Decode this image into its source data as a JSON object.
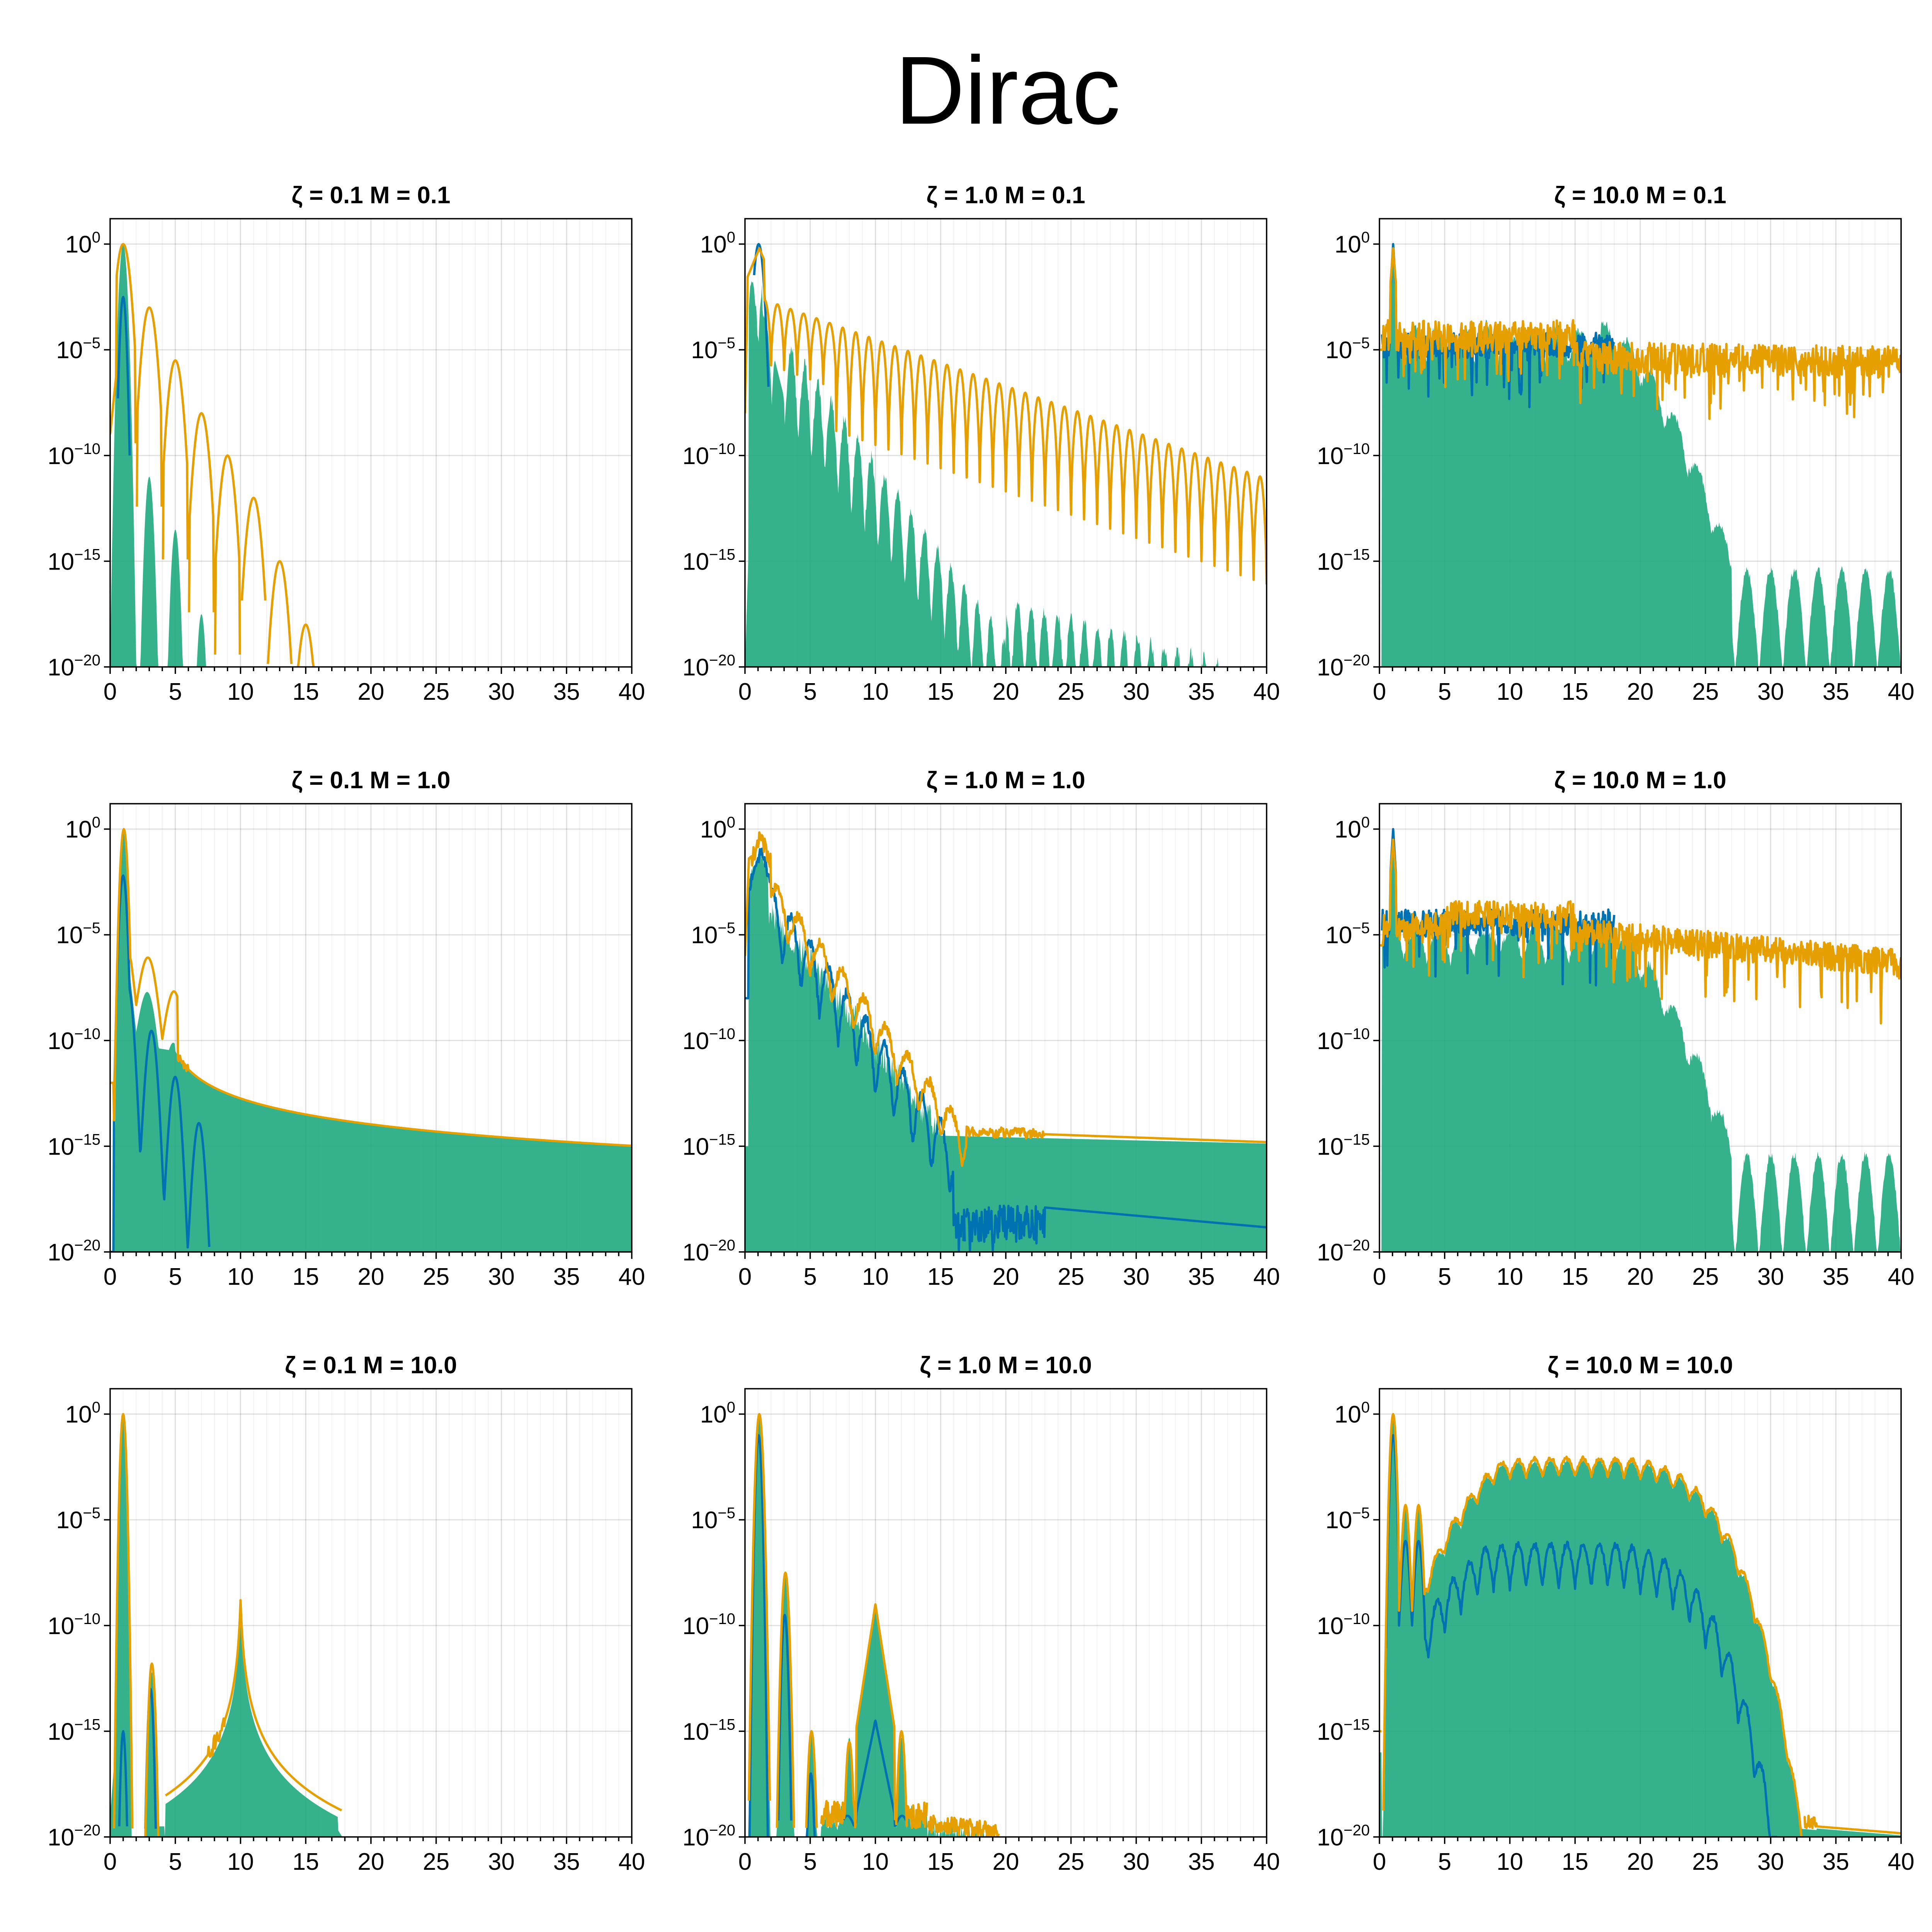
{
  "title": "Dirac",
  "colors": {
    "area": "#1FAA80",
    "blue": "#0072B2",
    "orange": "#E69F00"
  },
  "chart_data": [
    {
      "type": "area",
      "title": "ζ = 0.1  M = 0.1",
      "xlim": [
        0,
        40
      ],
      "ylim": [
        1e-20,
        1
      ],
      "yscale": "log",
      "grid": true,
      "x_ticks": [
        "0",
        "5",
        "10",
        "15",
        "20",
        "25",
        "30",
        "35",
        "40"
      ],
      "y_ticks": [
        "10^0",
        "10^-5",
        "10^-10",
        "10^-15",
        "10^-20"
      ],
      "peaks": {
        "area": [
          [
            1,
            0
          ],
          [
            3,
            -11
          ],
          [
            5,
            -13.5
          ],
          [
            7,
            -17.5
          ]
        ],
        "orange": [
          [
            1,
            0
          ],
          [
            3,
            -3
          ],
          [
            5,
            -5.5
          ],
          [
            7,
            -8
          ],
          [
            9,
            -10
          ],
          [
            11,
            -12
          ],
          [
            13,
            -15
          ],
          [
            15,
            -18
          ]
        ],
        "blue": [
          [
            1,
            -2.5
          ]
        ]
      }
    },
    {
      "type": "area",
      "title": "ζ = 1.0  M = 0.1",
      "xlim": [
        0,
        40
      ],
      "ylim": [
        1e-20,
        1
      ],
      "yscale": "log",
      "grid": true,
      "x_ticks": [
        "0",
        "5",
        "10",
        "15",
        "20",
        "25",
        "30",
        "35",
        "40"
      ],
      "y_ticks": [
        "10^0",
        "10^-5",
        "10^-10",
        "10^-15",
        "10^-20"
      ],
      "orange_range_log10": [
        [
          0,
          -1
        ],
        [
          40,
          -10
        ]
      ],
      "area_range_log10": [
        [
          1,
          0
        ],
        [
          10,
          -11
        ],
        [
          25,
          -17
        ],
        [
          35,
          -20
        ]
      ]
    },
    {
      "type": "area",
      "title": "ζ = 10.0  M = 0.1",
      "xlim": [
        0,
        40
      ],
      "ylim": [
        1e-20,
        1
      ],
      "yscale": "log",
      "grid": true,
      "x_ticks": [
        "0",
        "5",
        "10",
        "15",
        "20",
        "25",
        "30",
        "35",
        "40"
      ],
      "y_ticks": [
        "10^0",
        "10^-5",
        "10^-10",
        "10^-15",
        "10^-20"
      ],
      "orange_range_log10": [
        [
          0,
          -4
        ],
        [
          15,
          -3.5
        ],
        [
          40,
          -5
        ]
      ],
      "area_floor_log10": -15.5
    },
    {
      "type": "area",
      "title": "ζ = 0.1  M = 1.0",
      "xlim": [
        0,
        40
      ],
      "ylim": [
        1e-20,
        1
      ],
      "yscale": "log",
      "grid": true,
      "x_ticks": [
        "0",
        "5",
        "10",
        "15",
        "20",
        "25",
        "30",
        "35",
        "40"
      ],
      "y_ticks": [
        "10^0",
        "10^-5",
        "10^-10",
        "10^-15",
        "10^-20"
      ],
      "orange_tail_log10": [
        [
          5,
          -10.5
        ],
        [
          40,
          -15
        ]
      ]
    },
    {
      "type": "area",
      "title": "ζ = 1.0  M = 1.0",
      "xlim": [
        0,
        40
      ],
      "ylim": [
        1e-20,
        1
      ],
      "yscale": "log",
      "grid": true,
      "x_ticks": [
        "0",
        "5",
        "10",
        "15",
        "20",
        "25",
        "30",
        "35",
        "40"
      ],
      "y_ticks": [
        "10^0",
        "10^-5",
        "10^-10",
        "10^-15",
        "10^-20"
      ],
      "orange_tail_log10": [
        [
          17,
          -14.3
        ],
        [
          40,
          -14.8
        ]
      ],
      "blue_tail_log10": [
        [
          23,
          -17.9
        ],
        [
          40,
          -18.8
        ]
      ]
    },
    {
      "type": "area",
      "title": "ζ = 10.0  M = 1.0",
      "xlim": [
        0,
        40
      ],
      "ylim": [
        1e-20,
        1
      ],
      "yscale": "log",
      "grid": true,
      "x_ticks": [
        "0",
        "5",
        "10",
        "15",
        "20",
        "25",
        "30",
        "35",
        "40"
      ],
      "y_ticks": [
        "10^0",
        "10^-5",
        "10^-10",
        "10^-15",
        "10^-20"
      ],
      "orange_range_log10": [
        [
          0,
          -5
        ],
        [
          15,
          -3
        ],
        [
          40,
          -6
        ]
      ],
      "area_floor_log10": -15.5
    },
    {
      "type": "area",
      "title": "ζ = 0.1  M = 10.0",
      "xlim": [
        0,
        40
      ],
      "ylim": [
        1e-20,
        1
      ],
      "yscale": "log",
      "grid": true,
      "x_ticks": [
        "0",
        "5",
        "10",
        "15",
        "20",
        "25",
        "30",
        "35",
        "40"
      ],
      "y_ticks": [
        "10^0",
        "10^-5",
        "10^-10",
        "10^-15",
        "10^-20"
      ],
      "peaks": {
        "orange": [
          [
            1,
            0
          ],
          [
            3,
            -12
          ],
          [
            10,
            -9
          ]
        ],
        "blue": [
          [
            1,
            -15
          ],
          [
            3,
            -13
          ]
        ]
      }
    },
    {
      "type": "area",
      "title": "ζ = 1.0  M = 10.0",
      "xlim": [
        0,
        40
      ],
      "ylim": [
        1e-20,
        1
      ],
      "yscale": "log",
      "grid": true,
      "x_ticks": [
        "0",
        "5",
        "10",
        "15",
        "20",
        "25",
        "30",
        "35",
        "40"
      ],
      "y_ticks": [
        "10^0",
        "10^-5",
        "10^-10",
        "10^-15",
        "10^-20"
      ],
      "peaks": {
        "orange": [
          [
            1,
            0
          ],
          [
            3,
            -7.5
          ],
          [
            5,
            -15
          ],
          [
            8,
            -15.5
          ],
          [
            10,
            -9
          ],
          [
            12,
            -15
          ]
        ],
        "blue": [
          [
            1,
            -1
          ],
          [
            3,
            -9.5
          ],
          [
            5,
            -17
          ],
          [
            10,
            -14.5
          ]
        ]
      }
    },
    {
      "type": "area",
      "title": "ζ = 10.0  M = 10.0",
      "xlim": [
        0,
        40
      ],
      "ylim": [
        1e-20,
        1
      ],
      "yscale": "log",
      "grid": true,
      "x_ticks": [
        "0",
        "5",
        "10",
        "15",
        "20",
        "25",
        "30",
        "35",
        "40"
      ],
      "y_ticks": [
        "10^0",
        "10^-5",
        "10^-10",
        "10^-15",
        "10^-20"
      ],
      "peaks": {
        "orange": [
          [
            1,
            0
          ],
          [
            3,
            -4
          ],
          [
            10,
            -2
          ],
          [
            17,
            -3
          ],
          [
            25,
            -8
          ],
          [
            30,
            -13
          ],
          [
            33,
            -18
          ]
        ],
        "blue": [
          [
            1,
            -1
          ],
          [
            3,
            -6
          ],
          [
            10,
            -6
          ],
          [
            15,
            -6
          ],
          [
            25,
            -11
          ],
          [
            30,
            -16
          ]
        ]
      }
    }
  ]
}
